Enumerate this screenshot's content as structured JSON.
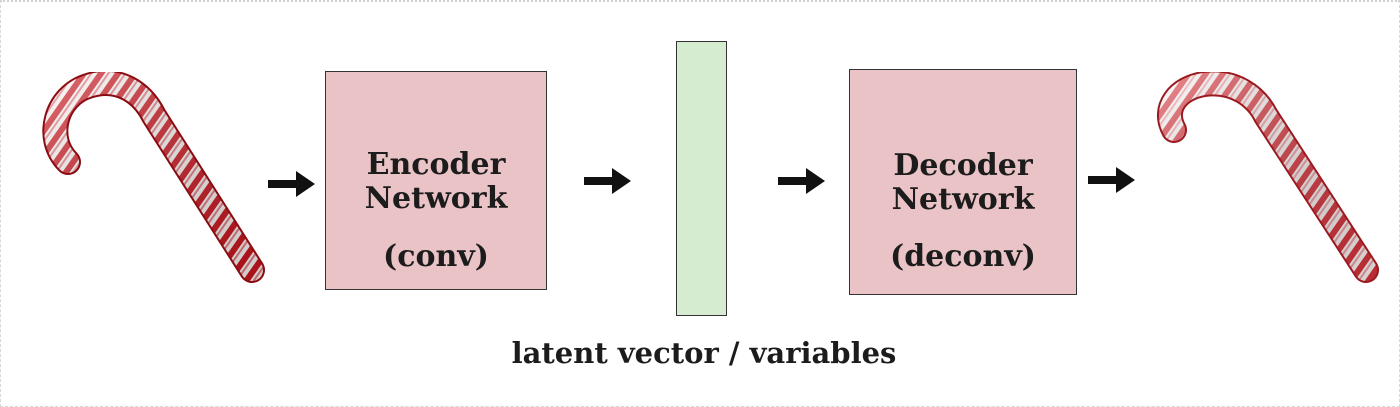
{
  "diagram": {
    "encoder": {
      "title_line1": "Encoder",
      "title_line2": "Network",
      "subtitle": "(conv)"
    },
    "decoder": {
      "title_line1": "Decoder",
      "title_line2": "Network",
      "subtitle": "(deconv)"
    },
    "latent": {
      "label": "latent vector / variables"
    },
    "colors": {
      "network_box": "#eac3c7",
      "latent_bar": "#d6ecd0",
      "cane_red": "#c8141e",
      "cane_white": "#f6f1ef",
      "arrow": "#111111"
    },
    "icons": {
      "input_image": "candy-cane-icon",
      "output_image": "candy-cane-icon",
      "flow_arrow": "right-arrow-icon"
    }
  }
}
